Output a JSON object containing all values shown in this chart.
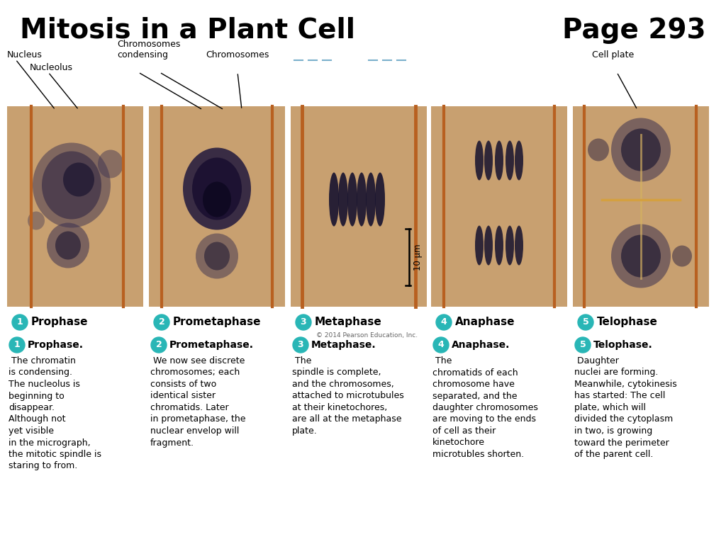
{
  "title_left": "Mitosis in a Plant Cell",
  "title_right": "Page 293",
  "background_color": "#ffffff",
  "teal_color": "#29b6b6",
  "phases": [
    "Prophase",
    "Prometaphase",
    "Metaphase",
    "Anaphase",
    "Telophase"
  ],
  "phase_numbers": [
    "1",
    "2",
    "3",
    "4",
    "5"
  ],
  "scale_bar": "10 μm",
  "copyright": "© 2014 Pearson Education, Inc.",
  "descriptions": [
    {
      "number": "1",
      "bold": "Prophase.",
      "text": " The chromatin\nis condensing.\nThe nucleolus is\nbeginning to\ndisappear.\nAlthough not\nyet visible\nin the micrograph,\nthe mitotic spindle is\nstaring to from."
    },
    {
      "number": "2",
      "bold": "Prometaphase.",
      "text": " We now see discrete\nchromosomes; each\nconsists of two\nidentical sister\nchromatids. Later\nin prometaphase, the\nnuclear envelop will\nfragment."
    },
    {
      "number": "3",
      "bold": "Metaphase.",
      "text": " The\nspindle is complete,\nand the chromosomes,\nattached to microtubules\nat their kinetochores,\nare all at the metaphase\nplate."
    },
    {
      "number": "4",
      "bold": "Anaphase.",
      "text": " The\nchromatids of each\nchromosome have\nseparated, and the\ndaughter chromosomes\nare moving to the ends\nof cell as their\nkinetochore\nmicrotubles shorten."
    },
    {
      "number": "5",
      "bold": "Telophase.",
      "text": " Daughter\nnuclei are forming.\nMeanwhile, cytokinesis\nhas started: The cell\nplate, which will\ndivided the cytoplasm\nin two, is growing\ntoward the perimeter\nof the parent cell."
    }
  ]
}
